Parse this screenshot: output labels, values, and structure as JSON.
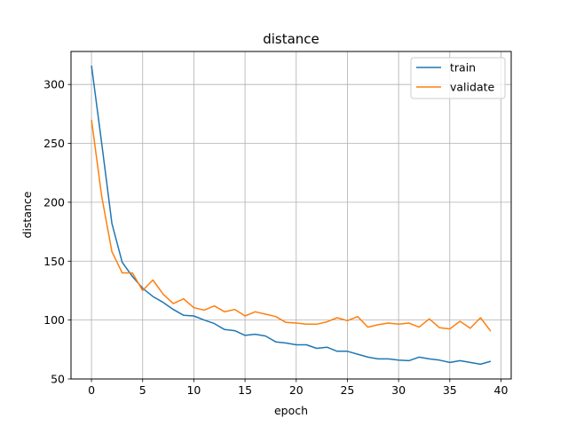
{
  "chart_data": {
    "type": "line",
    "title": "distance",
    "xlabel": "epoch",
    "ylabel": "distance",
    "xlim": [
      -2,
      41
    ],
    "ylim": [
      50,
      328
    ],
    "xticks": [
      0,
      5,
      10,
      15,
      20,
      25,
      30,
      35,
      40
    ],
    "yticks": [
      50,
      100,
      150,
      200,
      250,
      300
    ],
    "grid": true,
    "legend_position": "top-right",
    "x": [
      0,
      1,
      2,
      3,
      4,
      5,
      6,
      7,
      8,
      9,
      10,
      11,
      12,
      13,
      14,
      15,
      16,
      17,
      18,
      19,
      20,
      21,
      22,
      23,
      24,
      25,
      26,
      27,
      28,
      29,
      30,
      31,
      32,
      33,
      34,
      35,
      36,
      37,
      38,
      39
    ],
    "series": [
      {
        "name": "train",
        "color": "#1f77b4",
        "values": [
          316,
          250,
          182,
          149,
          137,
          127,
          120,
          115,
          109,
          104,
          103.5,
          100,
          97,
          92,
          91,
          87,
          88,
          86.5,
          81.5,
          80.5,
          79,
          79,
          76,
          77,
          73.5,
          73.5,
          71,
          68.5,
          67,
          67,
          66,
          65.5,
          68.5,
          67,
          66,
          64,
          65.5,
          64,
          62.5,
          65
        ]
      },
      {
        "name": "validate",
        "color": "#ff7f0e",
        "values": [
          270,
          205,
          158,
          140,
          140,
          125,
          134,
          122,
          114,
          118,
          110.5,
          108.5,
          112,
          107,
          109,
          103.5,
          107,
          105,
          103,
          98,
          97.5,
          96.5,
          96.5,
          98.5,
          102,
          99.5,
          103,
          94,
          96,
          97.5,
          96.5,
          97.5,
          94,
          101,
          93.5,
          92.5,
          99,
          93,
          102,
          90.5
        ]
      }
    ]
  }
}
